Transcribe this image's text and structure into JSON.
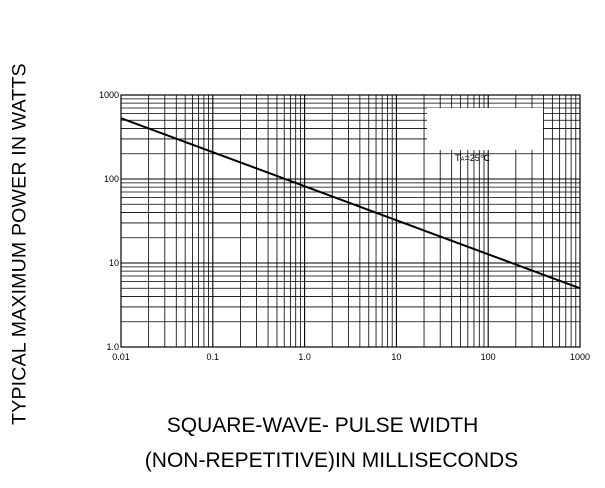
{
  "chart_data": {
    "type": "line",
    "title": "",
    "xlabel_line1": "SQUARE-WAVE- PULSE WIDTH",
    "xlabel_line2": "(NON-REPETITIVE)IN MILLISECONDS",
    "ylabel": "TYPICAL MAXIMUM POWER IN WATTS",
    "xscale": "log",
    "yscale": "log",
    "xlim": [
      0.01,
      1000
    ],
    "ylim": [
      1,
      1000
    ],
    "grid": true,
    "x_ticks": [
      "0.01",
      "0.1",
      "1.0",
      "10",
      "100",
      "1000"
    ],
    "y_ticks": [
      "1.0",
      "10",
      "100",
      "1000"
    ],
    "series": [
      {
        "x": [
          0.01,
          1000
        ],
        "y": [
          530,
          5
        ]
      }
    ],
    "annotation": {
      "prefix": "T",
      "subscript": "A",
      "suffix": "=25℃"
    },
    "colors": {
      "line": "#000000",
      "grid": "#000000"
    }
  }
}
